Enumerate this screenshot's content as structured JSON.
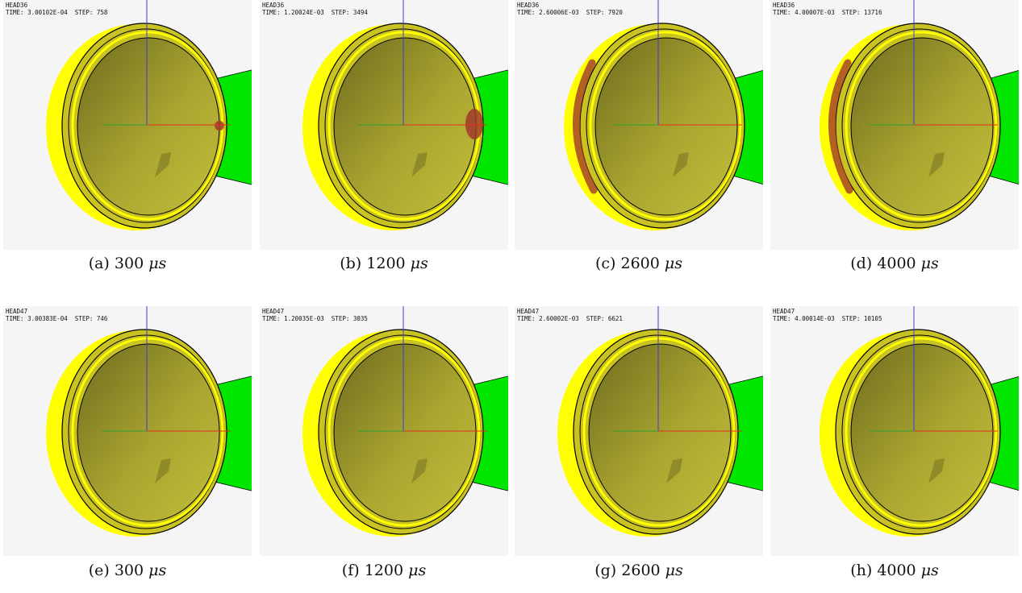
{
  "rows": [
    {
      "head_label": "HEAD36",
      "panels": [
        {
          "id": "a",
          "time": "TIME: 3.00102E-04",
          "step": "STEP: 758",
          "caption_letter": "(a)",
          "caption_value": "300",
          "unit": "μs",
          "stain": "spot-small",
          "tilt": 0
        },
        {
          "id": "b",
          "time": "TIME: 1.20024E-03",
          "step": "STEP: 3494",
          "caption_letter": "(b)",
          "caption_value": "1200",
          "unit": "μs",
          "stain": "spot-large",
          "tilt": 0
        },
        {
          "id": "c",
          "time": "TIME: 2.60006E-03",
          "step": "STEP: 7920",
          "caption_letter": "(c)",
          "caption_value": "2600",
          "unit": "μs",
          "stain": "arc",
          "tilt": 1
        },
        {
          "id": "d",
          "time": "TIME: 4.00007E-03",
          "step": "STEP: 13716",
          "caption_letter": "(d)",
          "caption_value": "4000",
          "unit": "μs",
          "stain": "arc",
          "tilt": 1
        }
      ]
    },
    {
      "head_label": "HEAD47",
      "panels": [
        {
          "id": "e",
          "time": "TIME: 3.00383E-04",
          "step": "STEP: 746",
          "caption_letter": "(e)",
          "caption_value": "300",
          "unit": "μs",
          "stain": "none",
          "tilt": 0
        },
        {
          "id": "f",
          "time": "TIME: 1.20035E-03",
          "step": "STEP: 3035",
          "caption_letter": "(f)",
          "caption_value": "1200",
          "unit": "μs",
          "stain": "none",
          "tilt": 0
        },
        {
          "id": "g",
          "time": "TIME: 2.60002E-03",
          "step": "STEP: 6621",
          "caption_letter": "(g)",
          "caption_value": "2600",
          "unit": "μs",
          "stain": "none",
          "tilt": 0
        },
        {
          "id": "h",
          "time": "TIME: 4.00014E-03",
          "step": "STEP: 10105",
          "caption_letter": "(h)",
          "caption_value": "4000",
          "unit": "μs",
          "stain": "none",
          "tilt": 1
        }
      ]
    }
  ],
  "colors": {
    "panel_bg": "#f5f5f5",
    "shell": "#ffff00",
    "rim": "#c9c223",
    "interior_dark": "#6e6b1f",
    "interior_light": "#c2be3b",
    "wedge": "#00e600",
    "stain": "#a03a2a",
    "axis_x": "#e03020",
    "axis_y": "#2fa02f",
    "axis_z": "#3a3ae0"
  }
}
